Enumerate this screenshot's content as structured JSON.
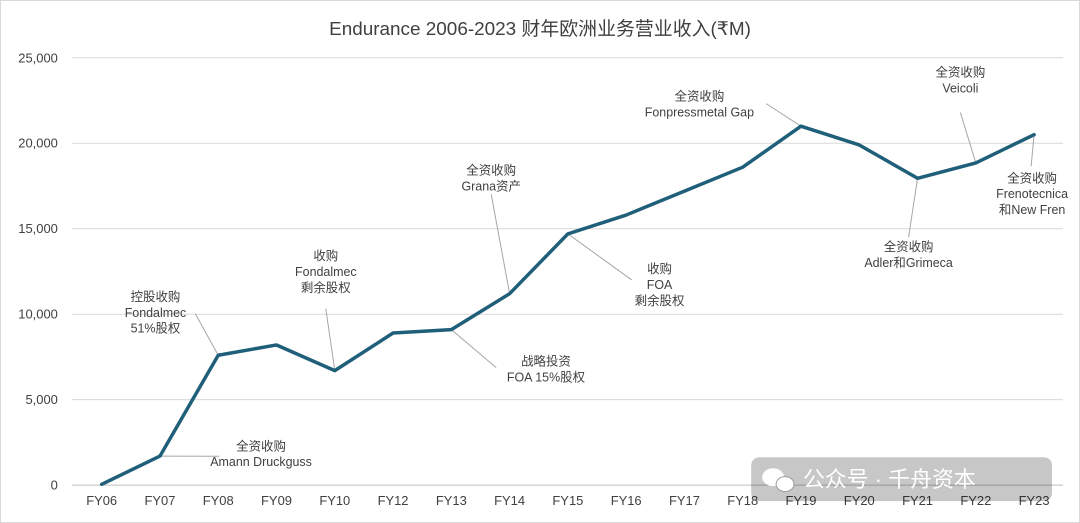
{
  "chart_data": {
    "type": "line",
    "title": "Endurance 2006-2023 财年欧洲业务营业收入(₹M)",
    "xlabel": "",
    "ylabel": "",
    "ylim": [
      0,
      25000
    ],
    "yticks": [
      "0",
      "5,000",
      "10,000",
      "15,000",
      "20,000",
      "25,000"
    ],
    "categories": [
      "FY06",
      "FY07",
      "FY08",
      "FY09",
      "FY10",
      "FY12",
      "FY13",
      "FY14",
      "FY15",
      "FY16",
      "FY17",
      "FY18",
      "FY19",
      "FY20",
      "FY21",
      "FY22",
      "FY23"
    ],
    "series": [
      {
        "name": "营业收入",
        "color": "#1f5f7a",
        "values": [
          50,
          1700,
          7600,
          8200,
          6700,
          8900,
          9100,
          11200,
          14700,
          15800,
          17200,
          18600,
          21000,
          19900,
          17950,
          18850,
          20500
        ]
      }
    ],
    "annotations": [
      {
        "index": 1,
        "lines": [
          "全资收购",
          "Amann Druckguss"
        ]
      },
      {
        "index": 2,
        "lines": [
          "控股收购",
          "Fondalmec",
          "51%股权"
        ]
      },
      {
        "index": 4,
        "lines": [
          "收购",
          "Fondalmec",
          "剩余股权"
        ]
      },
      {
        "index": 6,
        "lines": [
          "战略投资",
          "FOA 15%股权"
        ]
      },
      {
        "index": 7,
        "lines": [
          "全资收购",
          "Grana资产"
        ]
      },
      {
        "index": 8,
        "lines": [
          "收购",
          "FOA",
          "剩余股权"
        ]
      },
      {
        "index": 12,
        "lines": [
          "全资收购",
          "Fonpressmetal Gap"
        ]
      },
      {
        "index": 14,
        "lines": [
          "全资收购",
          "Adler和Grimeca"
        ]
      },
      {
        "index": 15,
        "lines": [
          "全资收购",
          "Veicoli"
        ]
      },
      {
        "index": 16,
        "lines": [
          "全资收购",
          "Frenotecnica",
          "和New Fren"
        ]
      }
    ]
  },
  "watermark": {
    "icon": "wechat-icon",
    "text": "公众号 · 千舟资本"
  }
}
